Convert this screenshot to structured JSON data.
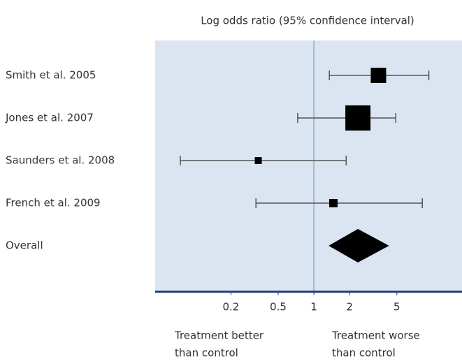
{
  "chart_data": {
    "type": "forest",
    "title": "Log odds ratio (95% confidence interval)",
    "xscale": "log",
    "xlim": [
      0.046,
      17.7
    ],
    "xticks": [
      0.2,
      0.5,
      1,
      2,
      5
    ],
    "reference_line": 1,
    "studies": [
      {
        "name": "Smith et al. 2005",
        "estimate": 3.5,
        "lower": 1.35,
        "upper": 9.3,
        "weight": 22
      },
      {
        "name": "Jones et al. 2007",
        "estimate": 2.35,
        "lower": 0.73,
        "upper": 4.9,
        "weight": 36
      },
      {
        "name": "Saunders et al. 2008",
        "estimate": 0.34,
        "lower": 0.075,
        "upper": 1.87,
        "weight": 10
      },
      {
        "name": "French et al. 2009",
        "estimate": 1.46,
        "lower": 0.325,
        "upper": 8.2,
        "weight": 12
      }
    ],
    "overall": {
      "name": "Overall",
      "estimate": 2.35,
      "lower": 1.33,
      "upper": 4.3
    },
    "left_note": [
      "Treatment better",
      "than control"
    ],
    "right_note": [
      "Treatment worse",
      "than control"
    ],
    "background_color": "#dbe5f1",
    "axis_color": "#1f3f7a",
    "reference_color": "#9db8dc",
    "ci_color": "#555555",
    "box_color": "#000000"
  }
}
